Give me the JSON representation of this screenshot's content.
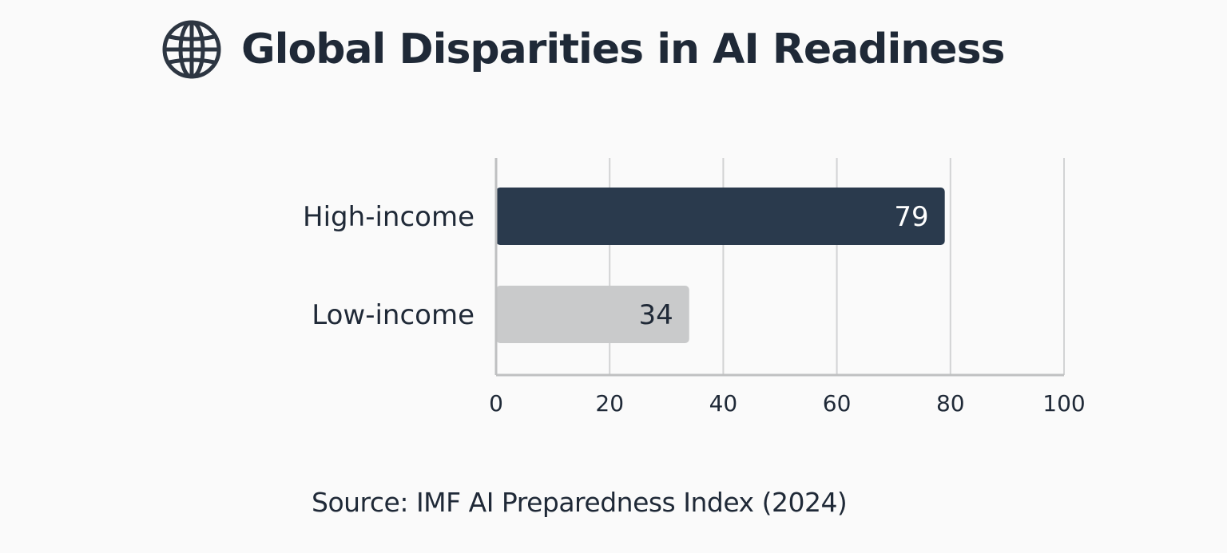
{
  "header": {
    "icon": "globe-icon",
    "title": "Global Disparities in AI Readiness"
  },
  "chart_data": {
    "type": "bar",
    "orientation": "horizontal",
    "title": "Global Disparities in AI Readiness",
    "categories": [
      "High-income",
      "Low-income"
    ],
    "values": [
      79,
      34
    ],
    "value_labels": [
      "79",
      "34"
    ],
    "bar_colors": [
      "#2a3a4d",
      "#c9cacb"
    ],
    "label_colors": [
      "#ffffff",
      "#1f2937"
    ],
    "xlim": [
      0,
      100
    ],
    "xticks": [
      0,
      20,
      40,
      60,
      80,
      100
    ],
    "xtick_labels": [
      "0",
      "20",
      "40",
      "60",
      "80",
      "100"
    ],
    "grid": true,
    "legend": "none"
  },
  "footer": {
    "source": "Source: IMF AI Preparedness Index (2024)"
  }
}
